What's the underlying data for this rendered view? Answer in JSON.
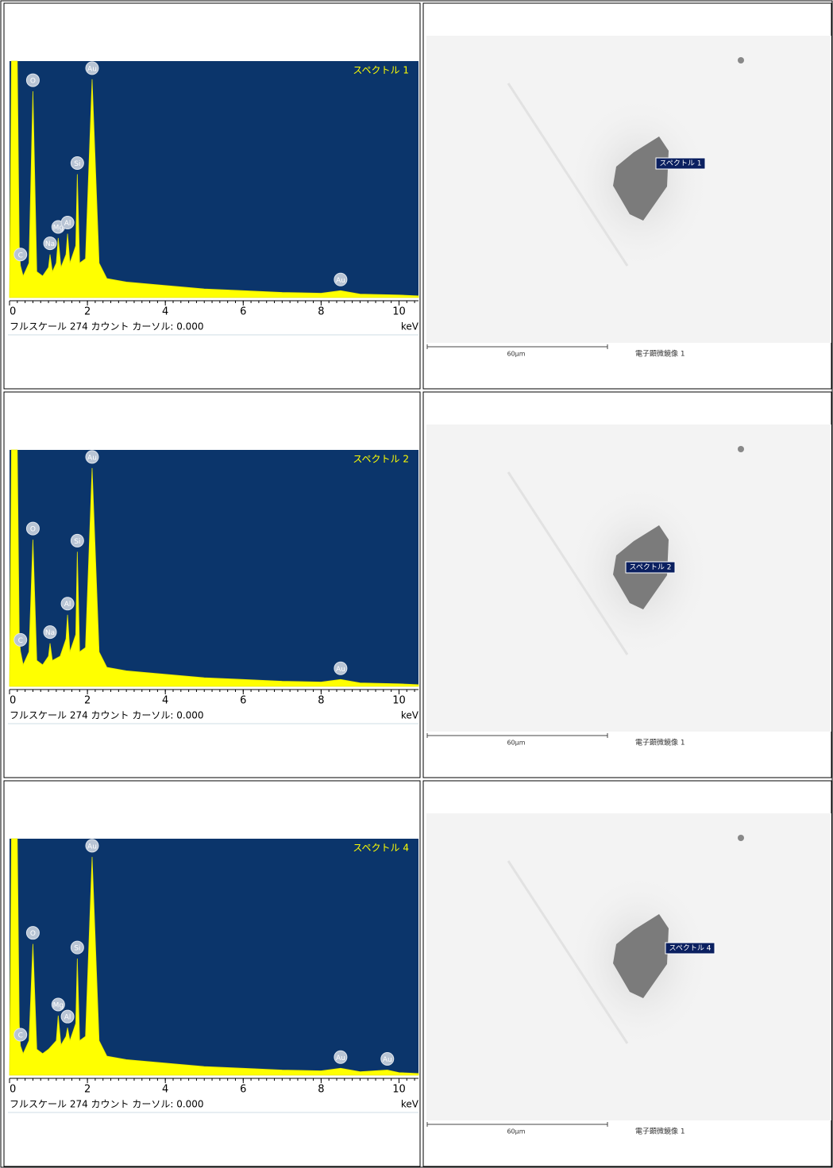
{
  "rows": [
    {
      "spectrum": {
        "title": "スペクトル 1",
        "xlabel": "keV",
        "footer": "フルスケール 274 カウント カーソル: 0.000",
        "xlim": [
          0,
          10.5
        ],
        "ylim": [
          0,
          274
        ],
        "xticks": [
          0,
          2,
          4,
          6,
          8,
          10
        ],
        "x": [
          0,
          0.05,
          0.2,
          0.25,
          0.28,
          0.35,
          0.5,
          0.6,
          0.7,
          0.85,
          1.0,
          1.04,
          1.1,
          1.2,
          1.25,
          1.32,
          1.45,
          1.49,
          1.55,
          1.7,
          1.74,
          1.8,
          1.95,
          2.12,
          2.3,
          2.5,
          3,
          4,
          5,
          6,
          7,
          8,
          8.5,
          9,
          10,
          10.5,
          10.5
        ],
        "values": [
          0,
          274,
          274,
          60,
          37,
          25,
          40,
          239,
          30,
          25,
          35,
          50,
          30,
          40,
          69,
          35,
          50,
          74,
          40,
          60,
          143,
          40,
          45,
          253,
          40,
          22,
          18,
          14,
          10,
          8,
          6,
          5,
          8,
          4,
          3,
          2,
          0
        ],
        "peaks": [
          {
            "label": "C",
            "x": 0.28
          },
          {
            "label": "O",
            "x": 0.6
          },
          {
            "label": "Na",
            "x": 1.04
          },
          {
            "label": "Mg",
            "x": 1.25
          },
          {
            "label": "Al",
            "x": 1.49
          },
          {
            "label": "Si",
            "x": 1.74
          },
          {
            "label": "Au",
            "x": 2.12
          },
          {
            "label": "Au",
            "x": 8.5
          }
        ]
      },
      "image": {
        "label": "スペクトル 1",
        "scale": "60μm",
        "caption": "電子顕微鏡像 1"
      }
    },
    {
      "spectrum": {
        "title": "スペクトル 2",
        "xlabel": "keV",
        "footer": "フルスケール 274 カウント カーソル: 0.000",
        "xlim": [
          0,
          10.5
        ],
        "ylim": [
          0,
          274
        ],
        "xticks": [
          0,
          2,
          4,
          6,
          8,
          10
        ],
        "x": [
          0,
          0.05,
          0.2,
          0.25,
          0.28,
          0.35,
          0.5,
          0.6,
          0.7,
          0.85,
          1.0,
          1.04,
          1.1,
          1.3,
          1.45,
          1.49,
          1.55,
          1.7,
          1.74,
          1.8,
          1.95,
          2.12,
          2.3,
          2.5,
          3,
          4,
          5,
          6,
          7,
          8,
          8.5,
          9,
          10,
          10.5,
          10.5
        ],
        "values": [
          0,
          274,
          274,
          60,
          41,
          25,
          40,
          170,
          30,
          25,
          35,
          50,
          30,
          35,
          55,
          83,
          40,
          60,
          156,
          40,
          45,
          253,
          40,
          22,
          18,
          14,
          10,
          8,
          6,
          5,
          8,
          4,
          3,
          2,
          0
        ],
        "peaks": [
          {
            "label": "C",
            "x": 0.28
          },
          {
            "label": "O",
            "x": 0.6
          },
          {
            "label": "Na",
            "x": 1.04
          },
          {
            "label": "Al",
            "x": 1.49
          },
          {
            "label": "Si",
            "x": 1.74
          },
          {
            "label": "Au",
            "x": 2.12
          },
          {
            "label": "Au",
            "x": 8.5
          }
        ]
      },
      "image": {
        "label": "スペクトル 2",
        "scale": "60μm",
        "caption": "電子顕微鏡像 1"
      }
    },
    {
      "spectrum": {
        "title": "スペクトル 4",
        "xlabel": "keV",
        "footer": "フルスケール 274 カウント カーソル: 0.000",
        "xlim": [
          0,
          10.5
        ],
        "ylim": [
          0,
          274
        ],
        "xticks": [
          0,
          2,
          4,
          6,
          8,
          10
        ],
        "x": [
          0,
          0.05,
          0.2,
          0.25,
          0.28,
          0.35,
          0.5,
          0.6,
          0.7,
          0.85,
          1.0,
          1.2,
          1.25,
          1.32,
          1.45,
          1.49,
          1.55,
          1.7,
          1.74,
          1.8,
          1.95,
          2.12,
          2.3,
          2.5,
          3,
          4,
          5,
          6,
          7,
          8,
          8.5,
          9,
          9.7,
          10,
          10.5,
          10.5
        ],
        "values": [
          0,
          274,
          274,
          60,
          34,
          25,
          40,
          152,
          30,
          25,
          30,
          40,
          69,
          35,
          45,
          55,
          40,
          60,
          135,
          40,
          45,
          253,
          40,
          22,
          18,
          14,
          10,
          8,
          6,
          5,
          8,
          4,
          6,
          3,
          2,
          0
        ],
        "peaks": [
          {
            "label": "C",
            "x": 0.28
          },
          {
            "label": "O",
            "x": 0.6
          },
          {
            "label": "Mg",
            "x": 1.25
          },
          {
            "label": "Al",
            "x": 1.49
          },
          {
            "label": "Si",
            "x": 1.74
          },
          {
            "label": "Au",
            "x": 2.12
          },
          {
            "label": "Au",
            "x": 8.5
          },
          {
            "label": "Au",
            "x": 9.7
          }
        ]
      },
      "image": {
        "label": "スペクトル 4",
        "scale": "60μm",
        "caption": "電子顕微鏡像 1"
      }
    }
  ]
}
